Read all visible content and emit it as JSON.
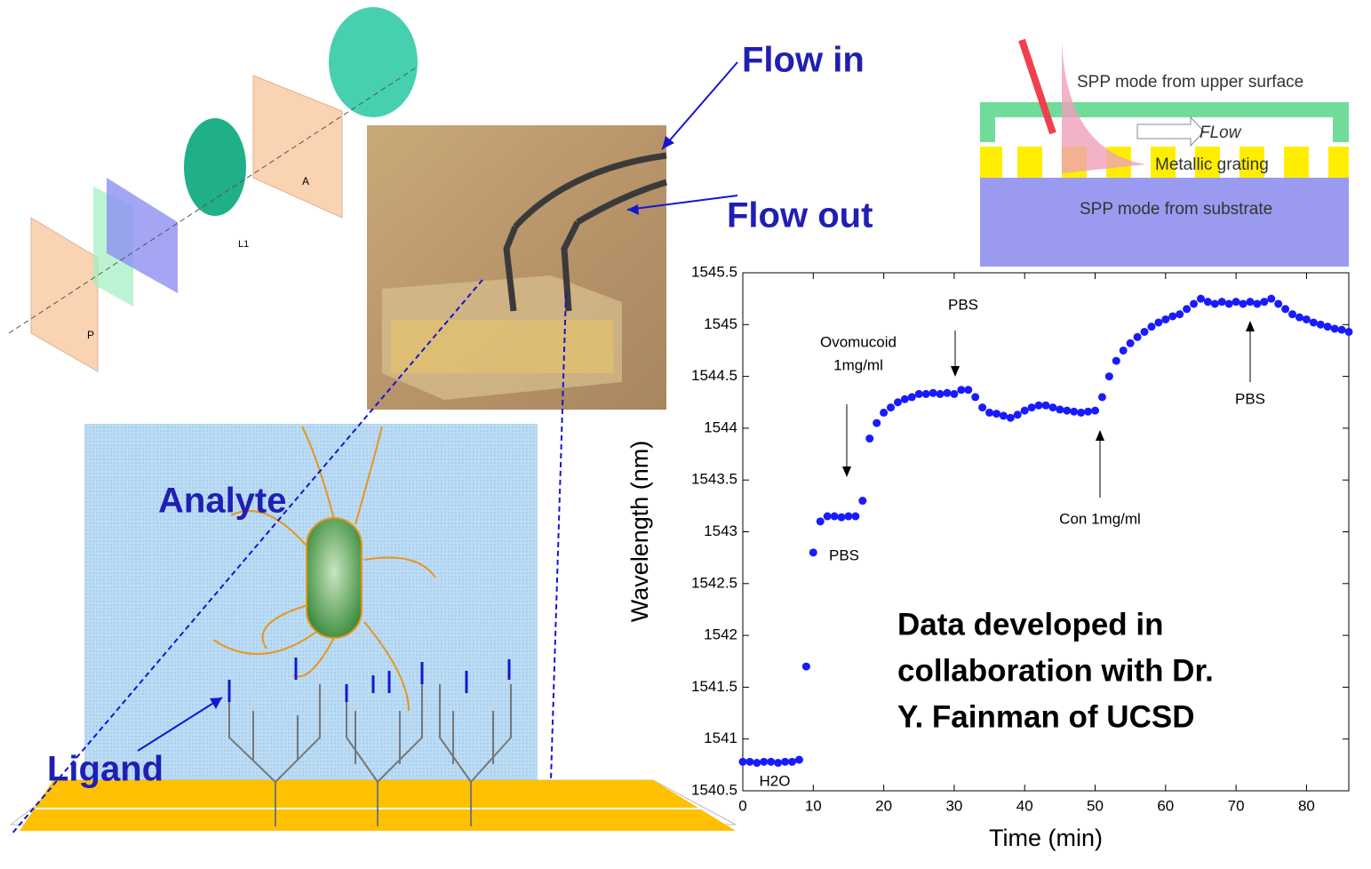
{
  "chart_data": {
    "type": "scatter",
    "color": "#1a1aff",
    "xlabel": "Time (min)",
    "ylabel": "Wavelength (nm)",
    "xlim": [
      0,
      86
    ],
    "ylim": [
      1540.5,
      1545.5
    ],
    "xticks": [
      0,
      10,
      20,
      30,
      40,
      50,
      60,
      70,
      80
    ],
    "yticks": [
      1540.5,
      1541,
      1541.5,
      1542,
      1542.5,
      1543,
      1543.5,
      1544,
      1544.5,
      1545,
      1545.5
    ],
    "x": [
      0,
      1,
      2,
      3,
      4,
      5,
      6,
      7,
      8,
      9,
      10,
      11,
      12,
      13,
      14,
      15,
      16,
      17,
      18,
      19,
      20,
      21,
      22,
      23,
      24,
      25,
      26,
      27,
      28,
      29,
      30,
      31,
      32,
      33,
      34,
      35,
      36,
      37,
      38,
      39,
      40,
      41,
      42,
      43,
      44,
      45,
      46,
      47,
      48,
      49,
      50,
      51,
      52,
      53,
      54,
      55,
      56,
      57,
      58,
      59,
      60,
      61,
      62,
      63,
      64,
      65,
      66,
      67,
      68,
      69,
      70,
      71,
      72,
      73,
      74,
      75,
      76,
      77,
      78,
      79,
      80,
      81,
      82,
      83,
      84,
      85,
      86
    ],
    "values": [
      1540.78,
      1540.78,
      1540.77,
      1540.78,
      1540.78,
      1540.77,
      1540.78,
      1540.78,
      1540.8,
      1541.7,
      1542.8,
      1543.1,
      1543.15,
      1543.15,
      1543.14,
      1543.15,
      1543.15,
      1543.3,
      1543.9,
      1544.05,
      1544.15,
      1544.2,
      1544.25,
      1544.28,
      1544.3,
      1544.33,
      1544.33,
      1544.34,
      1544.33,
      1544.34,
      1544.33,
      1544.37,
      1544.37,
      1544.3,
      1544.2,
      1544.15,
      1544.14,
      1544.12,
      1544.1,
      1544.13,
      1544.17,
      1544.2,
      1544.22,
      1544.22,
      1544.2,
      1544.18,
      1544.17,
      1544.16,
      1544.15,
      1544.16,
      1544.17,
      1544.3,
      1544.5,
      1544.65,
      1544.75,
      1544.82,
      1544.88,
      1544.93,
      1544.98,
      1545.02,
      1545.05,
      1545.08,
      1545.1,
      1545.15,
      1545.2,
      1545.25,
      1545.22,
      1545.2,
      1545.22,
      1545.2,
      1545.22,
      1545.2,
      1545.22,
      1545.2,
      1545.22,
      1545.25,
      1545.2,
      1545.15,
      1545.1,
      1545.07,
      1545.05,
      1545.02,
      1545.0,
      1544.98,
      1544.96,
      1544.95,
      1544.93
    ],
    "annotations": [
      "H2O",
      "PBS",
      "Ovomucoid",
      "1mg/ml",
      "PBS",
      "Con 1mg/ml",
      "PBS"
    ]
  },
  "labels": {
    "flow_in": "Flow in",
    "flow_out": "Flow out",
    "analyte": "Analyte",
    "ligand": "Ligand",
    "spp_upper": "SPP mode from upper surface",
    "flow": "FLow",
    "grating": "Metallic grating",
    "spp_substrate": "SPP mode from substrate",
    "optic_a": "A",
    "optic_p": "P",
    "optic_l1": "L1",
    "note": [
      "Data developed in",
      "collaboration with Dr.",
      "Y. Fainman of UCSD"
    ]
  }
}
